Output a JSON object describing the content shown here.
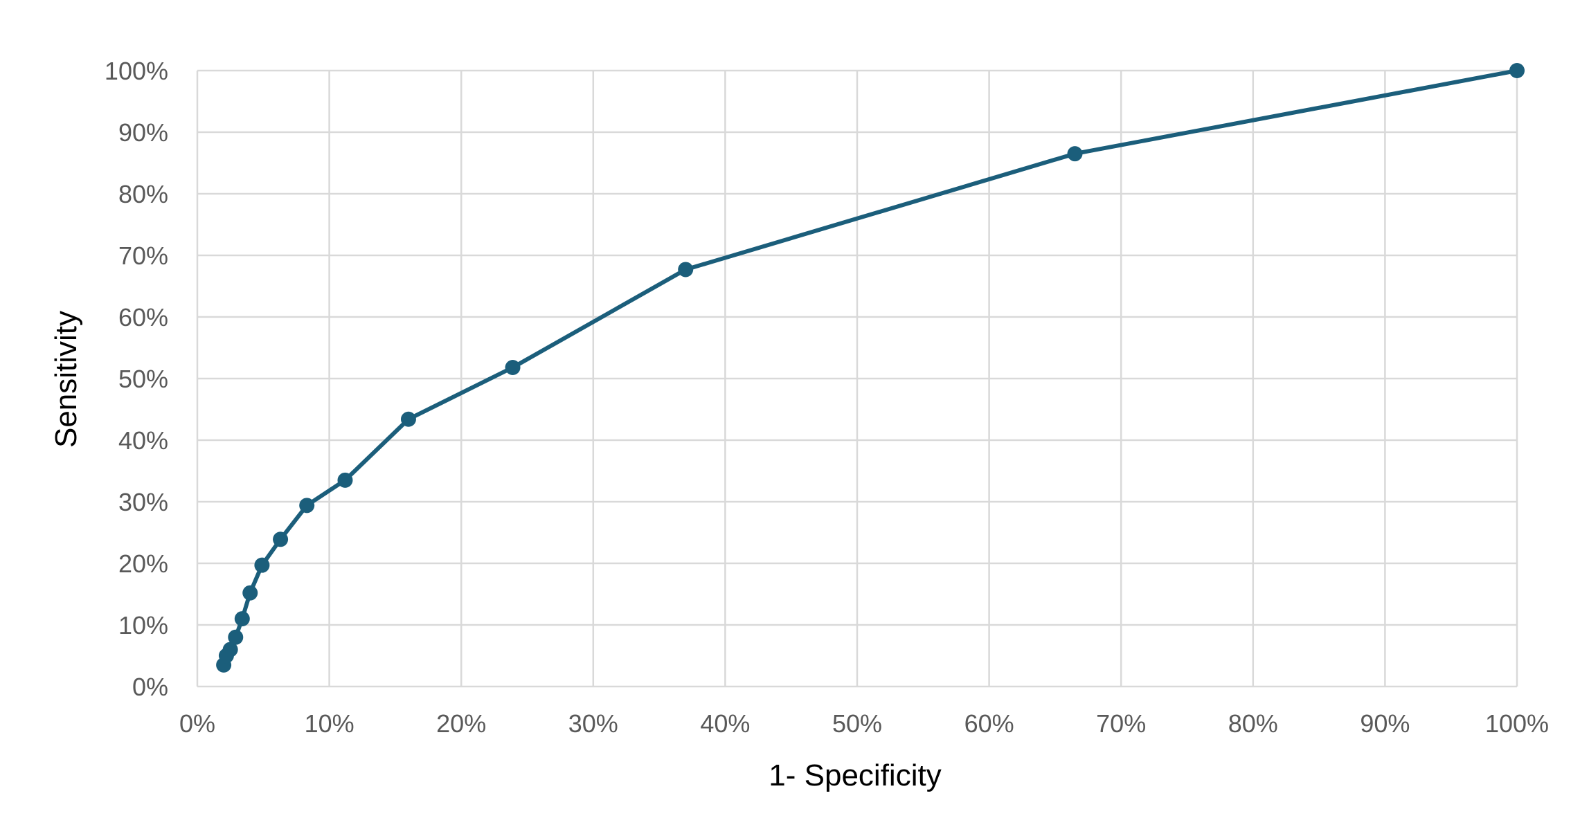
{
  "chart_data": {
    "type": "line",
    "title": "",
    "xlabel": "1- Specificity",
    "ylabel": "Sensitivity",
    "xlim": [
      0,
      1
    ],
    "ylim": [
      0,
      1
    ],
    "x_ticks": [
      "0%",
      "10%",
      "20%",
      "30%",
      "40%",
      "50%",
      "60%",
      "70%",
      "80%",
      "90%",
      "100%"
    ],
    "y_ticks": [
      "0%",
      "10%",
      "20%",
      "30%",
      "40%",
      "50%",
      "60%",
      "70%",
      "80%",
      "90%",
      "100%"
    ],
    "grid": true,
    "legend": "none",
    "series": [
      {
        "color": "#1b5e7b",
        "marker": "circle",
        "x": [
          0.02,
          0.022,
          0.025,
          0.029,
          0.034,
          0.04,
          0.049,
          0.063,
          0.083,
          0.112,
          0.16,
          0.239,
          0.37,
          0.665,
          1.0
        ],
        "y": [
          0.035,
          0.05,
          0.06,
          0.08,
          0.11,
          0.152,
          0.197,
          0.239,
          0.294,
          0.335,
          0.434,
          0.518,
          0.677,
          0.865,
          1.0
        ]
      }
    ]
  }
}
